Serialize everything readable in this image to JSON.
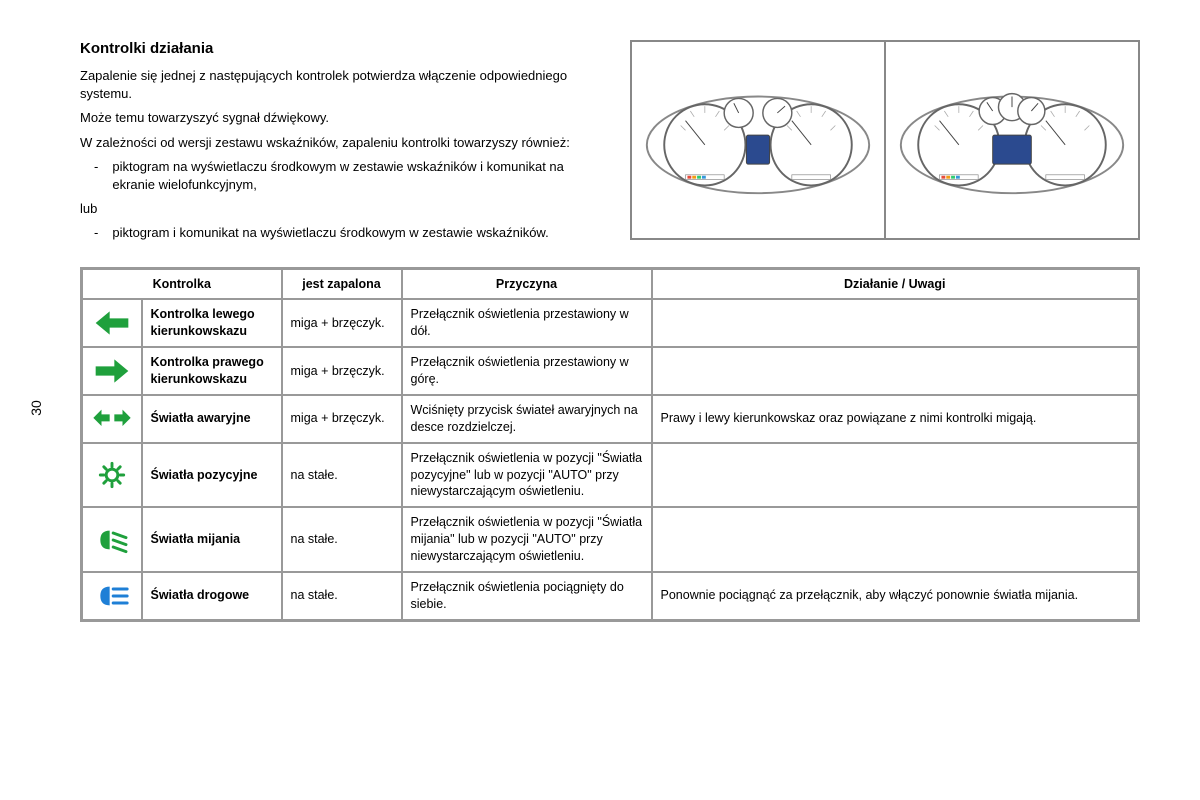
{
  "page_number": "30",
  "title": "Kontrolki działania",
  "intro": {
    "p1": "Zapalenie się jednej z następujących kontrolek potwierdza włączenie odpowiedniego systemu.",
    "p2": "Może temu towarzyszyć sygnał dźwiękowy.",
    "p3": "W zależności od wersji zestawu wskaźników, zapaleniu kontrolki towarzyszy również:",
    "b1": "piktogram na wyświetlaczu środkowym w zestawie wskaźników i komunikat na ekranie wielofunkcyjnym,",
    "or": "lub",
    "b2": "piktogram i komunikat na wyświetlaczu środkowym w zestawie wskaźników."
  },
  "headers": {
    "h1": "Kontrolka",
    "h2": "jest zapalona",
    "h3": "Przyczyna",
    "h4": "Działanie / Uwagi"
  },
  "rows": [
    {
      "icon": "left-arrow",
      "name": "Kontrolka lewego kierunkowskazu",
      "state": "miga + brzęczyk.",
      "cause": "Przełącznik oświetlenia przestawiony w dół.",
      "action": ""
    },
    {
      "icon": "right-arrow",
      "name": "Kontrolka prawego kierunkowskazu",
      "state": "miga + brzęczyk.",
      "cause": "Przełącznik oświetlenia przestawiony w górę.",
      "action": ""
    },
    {
      "icon": "hazard",
      "name": "Światła awaryjne",
      "state": "miga + brzęczyk.",
      "cause": "Wciśnięty przycisk świateł awaryjnych na desce rozdzielczej.",
      "action": "Prawy i lewy kierunkowskaz oraz powiązane z nimi kontrolki migają."
    },
    {
      "icon": "sidelights",
      "name": "Światła pozycyjne",
      "state": "na stałe.",
      "cause": "Przełącznik oświetlenia w pozycji \"Światła pozycyjne\" lub w pozycji \"AUTO\" przy niewystarczającym oświetleniu.",
      "action": ""
    },
    {
      "icon": "low-beam",
      "name": "Światła mijania",
      "state": "na stałe.",
      "cause": "Przełącznik oświetlenia w pozycji \"Światła mijania\" lub w pozycji \"AUTO\" przy niewystarczającym oświetleniu.",
      "action": ""
    },
    {
      "icon": "high-beam",
      "name": "Światła drogowe",
      "state": "na stałe.",
      "cause": "Przełącznik oświetlenia pociągnięty do siebie.",
      "action": "Ponownie pociągnąć za przełącznik, aby włączyć ponownie światła mijania."
    }
  ],
  "colors": {
    "green": "#1fa03c",
    "blue": "#1e7fd6",
    "border": "#999999",
    "text": "#000000",
    "display_blue": "#2b4a8f"
  }
}
